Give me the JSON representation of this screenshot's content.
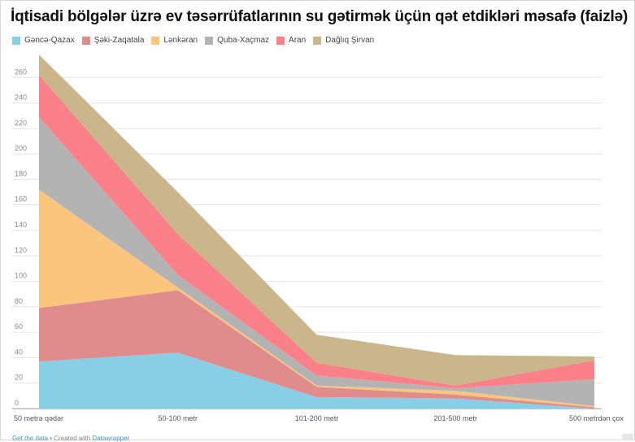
{
  "title": "İqtisadi bölgələr üzrə ev təsərrüfatlarının su gətirmək üçün qət etdikləri məsafə (faizlə)",
  "footer": {
    "get_data": "Get the data",
    "separator": " • Created with ",
    "created_with": "Datawrapper"
  },
  "chart_data": {
    "type": "area",
    "stacked": true,
    "categories": [
      "50 metrə qədər",
      "50-100 metr",
      "101-200 metr",
      "201-500 metr",
      "500 metrdən çox"
    ],
    "ylim": [
      0,
      280
    ],
    "yticks": [
      0,
      20,
      40,
      60,
      80,
      100,
      120,
      140,
      160,
      180,
      200,
      220,
      240,
      260
    ],
    "grid": true,
    "legend_position": "top-left",
    "series": [
      {
        "name": "Gəncə-Qazax",
        "color": "#88cfe6",
        "values": [
          37,
          44,
          9,
          8,
          0
        ]
      },
      {
        "name": "Şəki-Zaqatala",
        "color": "#e08c8c",
        "values": [
          42,
          49,
          8,
          3,
          1
        ]
      },
      {
        "name": "Lənkəran",
        "color": "#fcc57e",
        "values": [
          93,
          2,
          1,
          3,
          1
        ]
      },
      {
        "name": "Quba-Xaçmaz",
        "color": "#b3b3b3",
        "values": [
          57,
          10,
          8,
          2,
          21
        ]
      },
      {
        "name": "Aran",
        "color": "#fb8089",
        "values": [
          33,
          32,
          10,
          2,
          15
        ]
      },
      {
        "name": "Dağlıq Şirvan",
        "color": "#cbb58a",
        "values": [
          16,
          33,
          22,
          24,
          3
        ]
      }
    ]
  }
}
